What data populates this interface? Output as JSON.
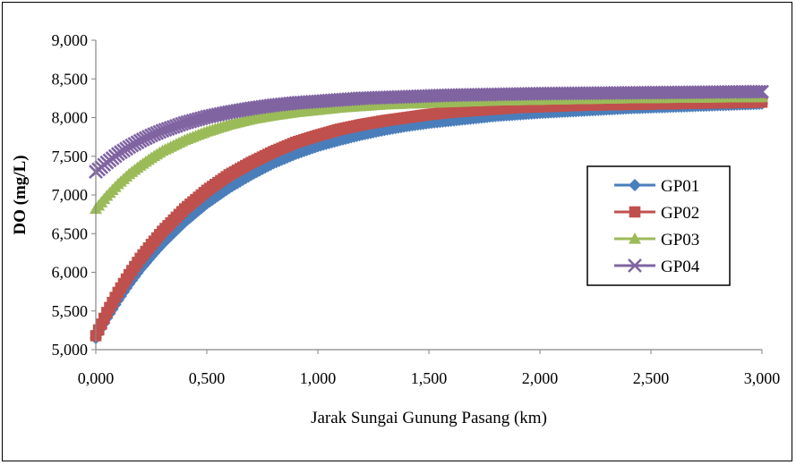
{
  "chart_data": {
    "type": "line",
    "title": "",
    "xlabel": "Jarak Sungai Gunung Pasang (km)",
    "ylabel": "DO (mg/L)",
    "xlim": [
      0,
      3
    ],
    "ylim": [
      5000,
      9000
    ],
    "x_ticks": [
      "0,000",
      "0,500",
      "1,000",
      "1,500",
      "2,000",
      "2,500",
      "3,000"
    ],
    "y_ticks": [
      "5,000",
      "5,500",
      "6,000",
      "6,500",
      "7,000",
      "7,500",
      "8,000",
      "8,500",
      "9,000"
    ],
    "grid": false,
    "legend_position": "right",
    "x": [
      0,
      0.05,
      0.1,
      0.15,
      0.2,
      0.25,
      0.3,
      0.4,
      0.5,
      0.6,
      0.7,
      0.8,
      0.9,
      1.0,
      1.1,
      1.2,
      1.3,
      1.4,
      1.5,
      1.6,
      1.7,
      1.8,
      1.9,
      2.0,
      2.2,
      2.4,
      2.6,
      2.8,
      3.0
    ],
    "series": [
      {
        "name": "GP01",
        "color": "#4a7ebb",
        "marker": "diamond",
        "values": [
          5150,
          5410,
          5640,
          5850,
          6040,
          6210,
          6370,
          6650,
          6890,
          7090,
          7260,
          7410,
          7530,
          7630,
          7710,
          7780,
          7840,
          7890,
          7930,
          7960,
          7990,
          8020,
          8040,
          8060,
          8090,
          8120,
          8140,
          8160,
          8180
        ]
      },
      {
        "name": "GP02",
        "color": "#c0504d",
        "marker": "square",
        "values": [
          5180,
          5480,
          5740,
          5970,
          6180,
          6360,
          6530,
          6820,
          7060,
          7260,
          7420,
          7560,
          7680,
          7770,
          7850,
          7910,
          7960,
          8000,
          8040,
          8070,
          8090,
          8110,
          8130,
          8140,
          8160,
          8170,
          8180,
          8190,
          8200
        ]
      },
      {
        "name": "GP03",
        "color": "#9bbb59",
        "marker": "triangle",
        "values": [
          6820,
          6990,
          7140,
          7270,
          7380,
          7480,
          7570,
          7710,
          7820,
          7910,
          7980,
          8030,
          8070,
          8100,
          8130,
          8150,
          8170,
          8180,
          8190,
          8200,
          8210,
          8220,
          8225,
          8230,
          8240,
          8250,
          8255,
          8260,
          8265
        ]
      },
      {
        "name": "GP04",
        "color": "#8064a2",
        "marker": "x",
        "values": [
          7300,
          7420,
          7530,
          7620,
          7700,
          7770,
          7830,
          7930,
          8010,
          8070,
          8120,
          8160,
          8190,
          8210,
          8230,
          8250,
          8260,
          8270,
          8280,
          8290,
          8295,
          8300,
          8305,
          8310,
          8315,
          8320,
          8325,
          8330,
          8335
        ]
      }
    ]
  }
}
